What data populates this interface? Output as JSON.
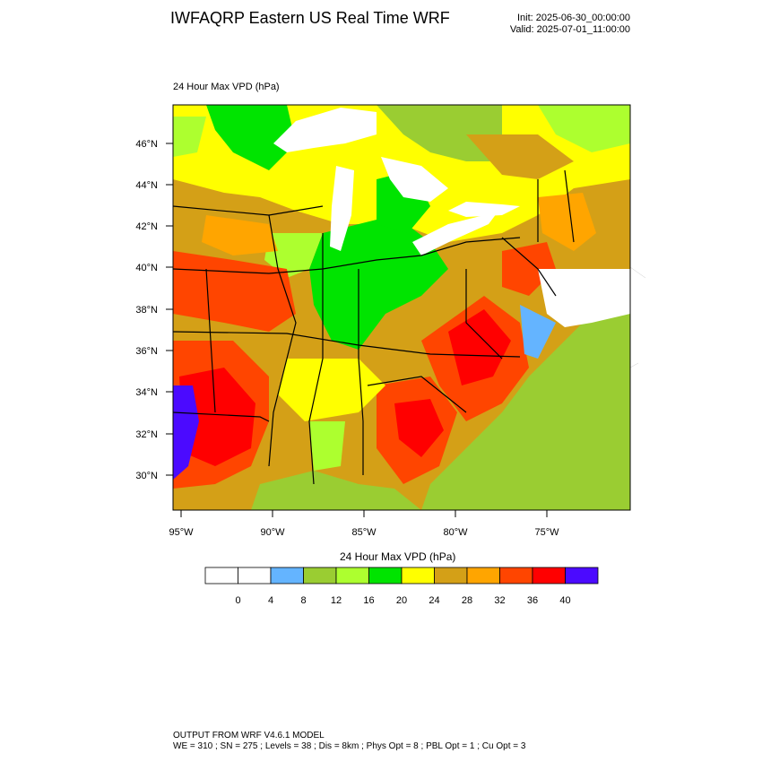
{
  "header": {
    "title": "IWFAQRP Eastern US Real Time WRF",
    "init": "Init: 2025-06-30_00:00:00",
    "valid": "Valid: 2025-07-01_11:00:00"
  },
  "map": {
    "field_label": "24 Hour Max VPD   (hPa)",
    "lat_labels": [
      "46°N",
      "44°N",
      "42°N",
      "40°N",
      "38°N",
      "36°N",
      "34°N",
      "32°N",
      "30°N"
    ],
    "lon_labels": [
      "95°W",
      "90°W",
      "85°W",
      "80°W",
      "75°W"
    ]
  },
  "colorbar": {
    "title": "24 Hour Max VPD  (hPa)",
    "tick_labels": [
      "0",
      "4",
      "8",
      "12",
      "16",
      "20",
      "24",
      "28",
      "32",
      "36",
      "40"
    ],
    "colors": [
      "#ffffff",
      "#ffffff",
      "#64b4ff",
      "#9acd32",
      "#adff2f",
      "#00e400",
      "#ffff00",
      "#d4a017",
      "#ffa500",
      "#ff4500",
      "#ff0000",
      "#4b0aff"
    ]
  },
  "footer": {
    "line1": "OUTPUT FROM WRF V4.6.1 MODEL",
    "line2": "WE = 310 ; SN = 275 ; Levels = 38 ; Dis = 8km ; Phys Opt = 8 ; PBL Opt = 1 ; Cu Opt = 3"
  }
}
